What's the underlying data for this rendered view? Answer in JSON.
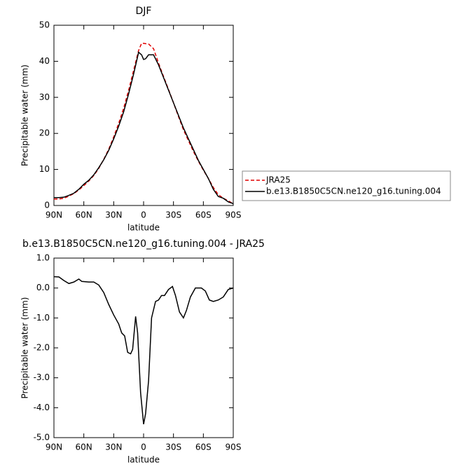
{
  "chart_data": [
    {
      "type": "line",
      "title": "DJF",
      "xlabel": "latitude",
      "ylabel": "Precipitable water (mm)",
      "x": [
        90,
        85,
        80,
        75,
        70,
        65,
        60,
        55,
        50,
        45,
        40,
        35,
        30,
        25,
        20,
        15,
        10,
        5,
        2,
        0,
        -2,
        -5,
        -10,
        -15,
        -20,
        -25,
        -30,
        -35,
        -40,
        -45,
        -50,
        -55,
        -60,
        -65,
        -70,
        -75,
        -80,
        -85,
        -90
      ],
      "series": [
        {
          "name": "JRA25",
          "color": "#e00000",
          "dash": true,
          "values": [
            1.8,
            1.8,
            2.0,
            2.6,
            3.3,
            4.3,
            5.5,
            6.8,
            8.3,
            10.3,
            12.8,
            15.6,
            19,
            22.8,
            27,
            32,
            37.5,
            43,
            45,
            45,
            44.9,
            44.8,
            43.5,
            39.5,
            35.8,
            32.2,
            28.5,
            24.7,
            21,
            18,
            15,
            12.3,
            9.8,
            7.5,
            5,
            3,
            2,
            1.3,
            0.5
          ]
        },
        {
          "name": "b.e13.B1850C5CN.ne120_g16.tuning.004",
          "color": "#000000",
          "dash": false,
          "values": [
            2.2,
            2.2,
            2.3,
            2.8,
            3.4,
            4.5,
            5.9,
            7.0,
            8.5,
            10.5,
            12.7,
            15.3,
            18.5,
            22,
            26,
            31,
            36.5,
            42.5,
            41.8,
            40.5,
            40.7,
            41.8,
            41.8,
            39,
            35.5,
            32,
            28.5,
            25,
            21.5,
            18.5,
            15.5,
            12.5,
            10,
            7.5,
            4.5,
            2.5,
            2,
            1,
            0.5
          ]
        }
      ],
      "xlim": [
        90,
        -90
      ],
      "xticks": [
        {
          "value": 90,
          "label": "90N"
        },
        {
          "value": 60,
          "label": "60N"
        },
        {
          "value": 30,
          "label": "30N"
        },
        0,
        {
          "value": -30,
          "label": "30S"
        },
        {
          "value": -60,
          "label": "60S"
        },
        {
          "value": -90,
          "label": "90S"
        }
      ],
      "ylim": [
        0,
        50
      ],
      "yticks": [
        0,
        10,
        20,
        30,
        40,
        50
      ],
      "legend": "right"
    },
    {
      "type": "line",
      "title": "b.e13.B1850C5CN.ne120_g16.tuning.004 - JRA25",
      "xlabel": "latitude",
      "ylabel": "Precipitable water (mm)",
      "x": [
        90,
        85,
        80,
        75,
        70,
        65,
        62,
        55,
        50,
        45,
        40,
        35,
        30,
        25,
        22,
        19,
        16,
        13,
        11,
        8,
        6,
        3,
        0,
        -2,
        -5,
        -8,
        -12,
        -15,
        -18,
        -21,
        -25,
        -29,
        -32,
        -36,
        -40,
        -43,
        -47,
        -52,
        -58,
        -62,
        -66,
        -70,
        -75,
        -80,
        -85,
        -90
      ],
      "series": [
        {
          "color": "#000000",
          "dash": false,
          "values": [
            0.38,
            0.37,
            0.25,
            0.15,
            0.2,
            0.3,
            0.22,
            0.2,
            0.2,
            0.1,
            -0.15,
            -0.55,
            -0.9,
            -1.2,
            -1.5,
            -1.6,
            -2.15,
            -2.2,
            -2.05,
            -0.95,
            -1.5,
            -3.5,
            -4.55,
            -4.2,
            -3.1,
            -1.0,
            -0.45,
            -0.4,
            -0.25,
            -0.25,
            -0.05,
            0.05,
            -0.25,
            -0.8,
            -1.0,
            -0.75,
            -0.3,
            0,
            0,
            -0.1,
            -0.4,
            -0.45,
            -0.4,
            -0.3,
            -0.05,
            0
          ]
        }
      ],
      "xlim": [
        90,
        -90
      ],
      "xticks": [
        {
          "value": 90,
          "label": "90N"
        },
        {
          "value": 60,
          "label": "60N"
        },
        {
          "value": 30,
          "label": "30N"
        },
        0,
        {
          "value": -30,
          "label": "30S"
        },
        {
          "value": -60,
          "label": "60S"
        },
        {
          "value": -90,
          "label": "90S"
        }
      ],
      "ylim": [
        -5,
        1
      ],
      "yticks": [
        {
          "value": -5,
          "label": "-5.0"
        },
        {
          "value": -4,
          "label": "-4.0"
        },
        {
          "value": -3,
          "label": "-3.0"
        },
        {
          "value": -2,
          "label": "-2.0"
        },
        {
          "value": -1,
          "label": "-1.0"
        },
        {
          "value": 0,
          "label": "0.0"
        },
        {
          "value": 1,
          "label": "1.0"
        }
      ]
    }
  ]
}
